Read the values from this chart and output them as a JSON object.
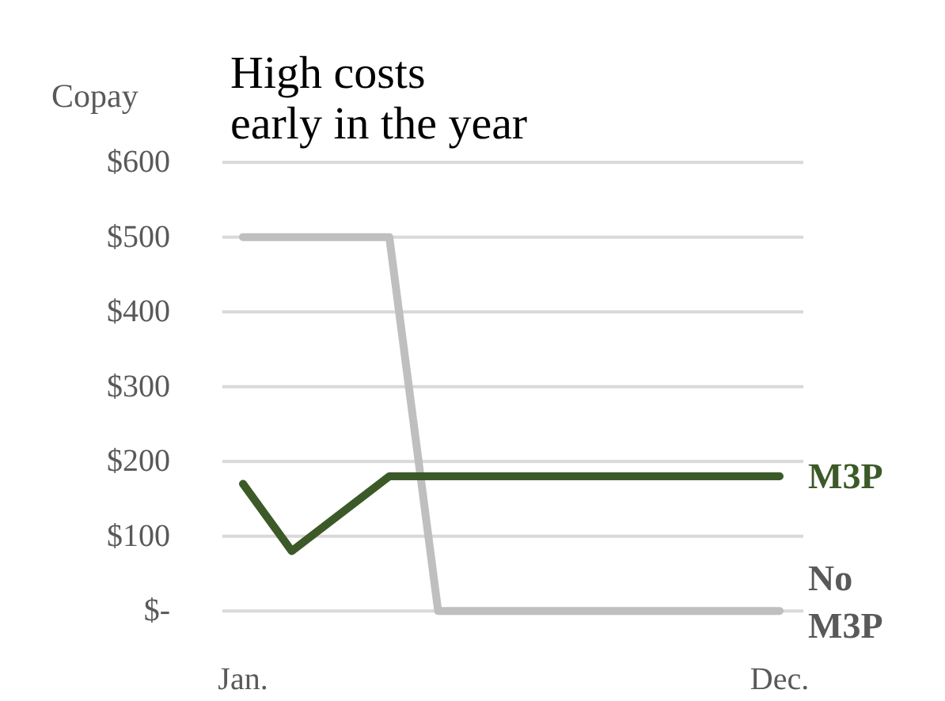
{
  "chart_data": {
    "type": "line",
    "title": "High costs\nearly in the year",
    "ylabel": "Copay",
    "categories": [
      "Jan.",
      null,
      null,
      null,
      null,
      null,
      null,
      null,
      null,
      null,
      null,
      "Dec."
    ],
    "ylim": [
      0,
      600
    ],
    "yticks": [
      {
        "value": 0,
        "label": "$-"
      },
      {
        "value": 100,
        "label": "$100"
      },
      {
        "value": 200,
        "label": "$200"
      },
      {
        "value": 300,
        "label": "$300"
      },
      {
        "value": 400,
        "label": "$400"
      },
      {
        "value": 500,
        "label": "$500"
      },
      {
        "value": 600,
        "label": "$600"
      }
    ],
    "grid": "y",
    "legend": false,
    "marker": "none",
    "line_style": "solid",
    "series": [
      {
        "name": "No M3P",
        "color": "#bfbfbf",
        "values": [
          500,
          500,
          500,
          500,
          0,
          0,
          0,
          0,
          0,
          0,
          0,
          0
        ]
      },
      {
        "name": "M3P",
        "color": "#3c5a28",
        "values": [
          170,
          80,
          130,
          180,
          180,
          180,
          180,
          180,
          180,
          180,
          180,
          180
        ]
      }
    ]
  }
}
